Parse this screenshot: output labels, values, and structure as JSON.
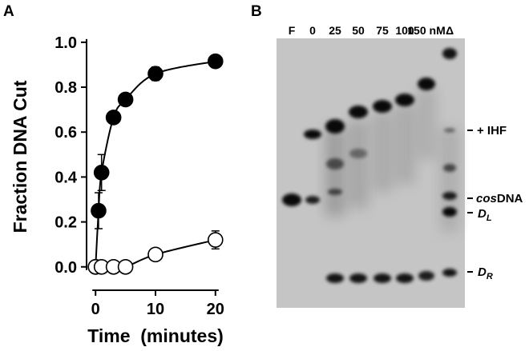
{
  "panels": {
    "a": "A",
    "b": "B"
  },
  "chart_data": {
    "type": "scatter",
    "xlabel": "Time  (minutes)",
    "ylabel": "Fraction DNA Cut",
    "xlim": [
      -1.5,
      21.5
    ],
    "ylim": [
      -0.04,
      1.06
    ],
    "x_ticks": [
      "0",
      "10",
      "20"
    ],
    "y_ticks": [
      "0.0",
      "0.2",
      "0.4",
      "0.6",
      "0.8",
      "1.0"
    ],
    "grid": false,
    "series": [
      {
        "marker": "filled-circle",
        "color": "#000000",
        "points": [
          {
            "x": 0,
            "y": 0.0
          },
          {
            "x": 0.5,
            "y": 0.25,
            "err": 0.08
          },
          {
            "x": 1,
            "y": 0.42,
            "err": 0.08
          },
          {
            "x": 3,
            "y": 0.665
          },
          {
            "x": 5,
            "y": 0.745
          },
          {
            "x": 10,
            "y": 0.86,
            "err": 0.03
          },
          {
            "x": 20,
            "y": 0.915
          }
        ]
      },
      {
        "marker": "open-circle",
        "color": "#000000",
        "points": [
          {
            "x": 0,
            "y": 0.0
          },
          {
            "x": 1,
            "y": 0.0
          },
          {
            "x": 3,
            "y": 0.0
          },
          {
            "x": 5,
            "y": 0.0
          },
          {
            "x": 10,
            "y": 0.055
          },
          {
            "x": 20,
            "y": 0.12,
            "err": 0.04
          }
        ]
      }
    ]
  },
  "gel": {
    "lanes": [
      "F",
      "0",
      "25",
      "50",
      "75",
      "100",
      "150 nM",
      "Δ"
    ],
    "band_labels": {
      "ihf": "+ IHF",
      "cos_italic": "cos",
      "cos_rest": "DNA",
      "dl_main": "D",
      "dl_sub": "L",
      "dr_main": "D",
      "dr_sub": "R"
    }
  }
}
